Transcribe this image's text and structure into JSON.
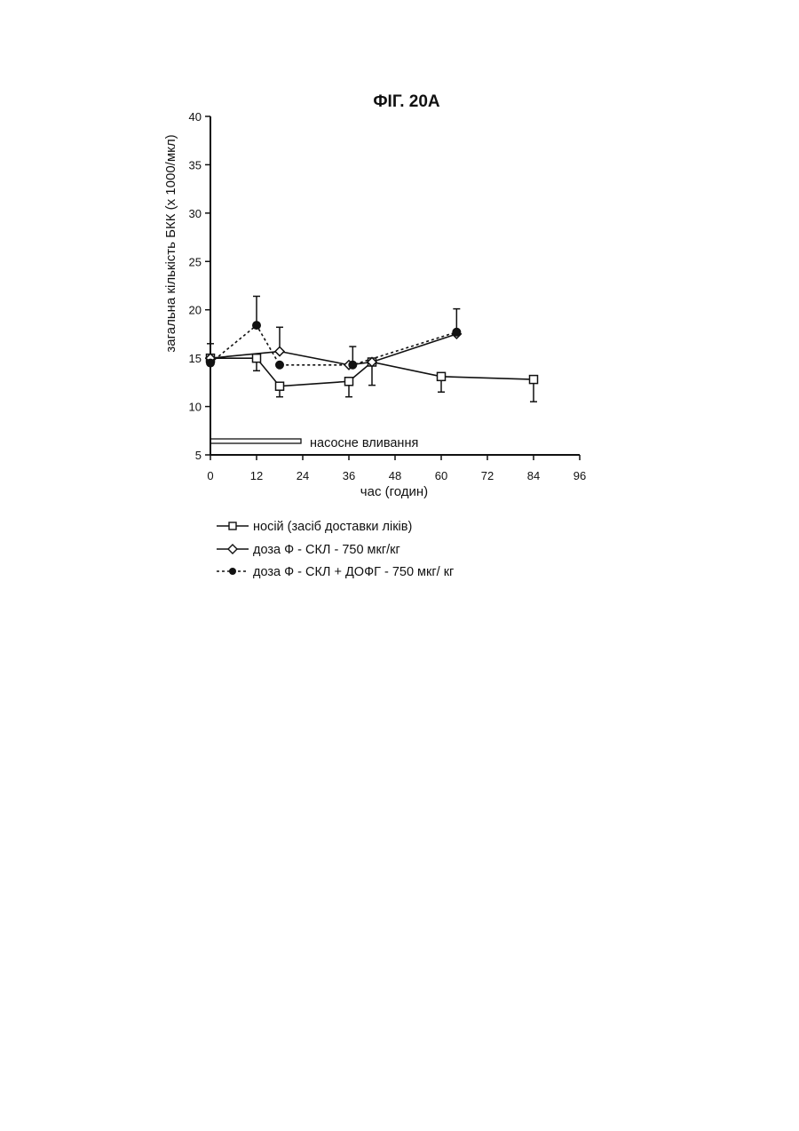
{
  "chart_data": {
    "type": "line",
    "title": "ФІГ. 20А",
    "xlabel": "час (годин)",
    "ylabel": "загальна кількість БКК (x 1000/мкл)",
    "xlim": [
      0,
      96
    ],
    "ylim": [
      5,
      40
    ],
    "x_ticks": [
      0,
      12,
      24,
      36,
      48,
      60,
      72,
      84,
      96
    ],
    "x_tick_labels": [
      "0",
      "12",
      "24",
      "36",
      "48",
      "60",
      "72",
      "84",
      "96"
    ],
    "y_ticks": [
      5,
      10,
      15,
      20,
      25,
      30,
      35,
      40
    ],
    "y_tick_labels": [
      "5",
      "10",
      "15",
      "20",
      "25",
      "30",
      "35",
      "40"
    ],
    "grid": false,
    "legend_position": "bottom",
    "series": [
      {
        "name": "носій (засіб доставки ліків)",
        "marker": "open-square",
        "line": "solid",
        "x": [
          0,
          12,
          18,
          36,
          42,
          60,
          84
        ],
        "y": [
          15.0,
          15.0,
          12.1,
          12.6,
          14.6,
          13.1,
          12.8
        ],
        "err_low": [
          0,
          1.3,
          1.1,
          1.6,
          2.4,
          1.6,
          2.3
        ],
        "err_high": [
          0,
          0,
          0,
          0,
          0,
          0,
          0
        ]
      },
      {
        "name": "доза Ф - СКЛ - 750 мкг/кг",
        "marker": "open-diamond",
        "line": "solid",
        "x": [
          0,
          18,
          36,
          42,
          64
        ],
        "y": [
          15.0,
          15.7,
          14.3,
          14.6,
          17.5
        ],
        "err_low": [
          0,
          0,
          0,
          0,
          0
        ],
        "err_high": [
          1.5,
          2.5,
          0,
          0,
          0
        ]
      },
      {
        "name": "доза Ф - СКЛ + ДОФГ - 750 мкг/ кг",
        "marker": "filled-circle",
        "line": "dashed",
        "x": [
          0,
          12,
          18,
          37,
          64
        ],
        "y": [
          14.5,
          18.4,
          14.3,
          14.3,
          17.7
        ],
        "err_low": [
          0,
          0,
          0,
          0,
          0
        ],
        "err_high": [
          0,
          3.0,
          0,
          1.9,
          2.4
        ]
      }
    ],
    "annotation": {
      "text": "насосне вливання",
      "x_start": 0,
      "x_end": 24
    }
  }
}
